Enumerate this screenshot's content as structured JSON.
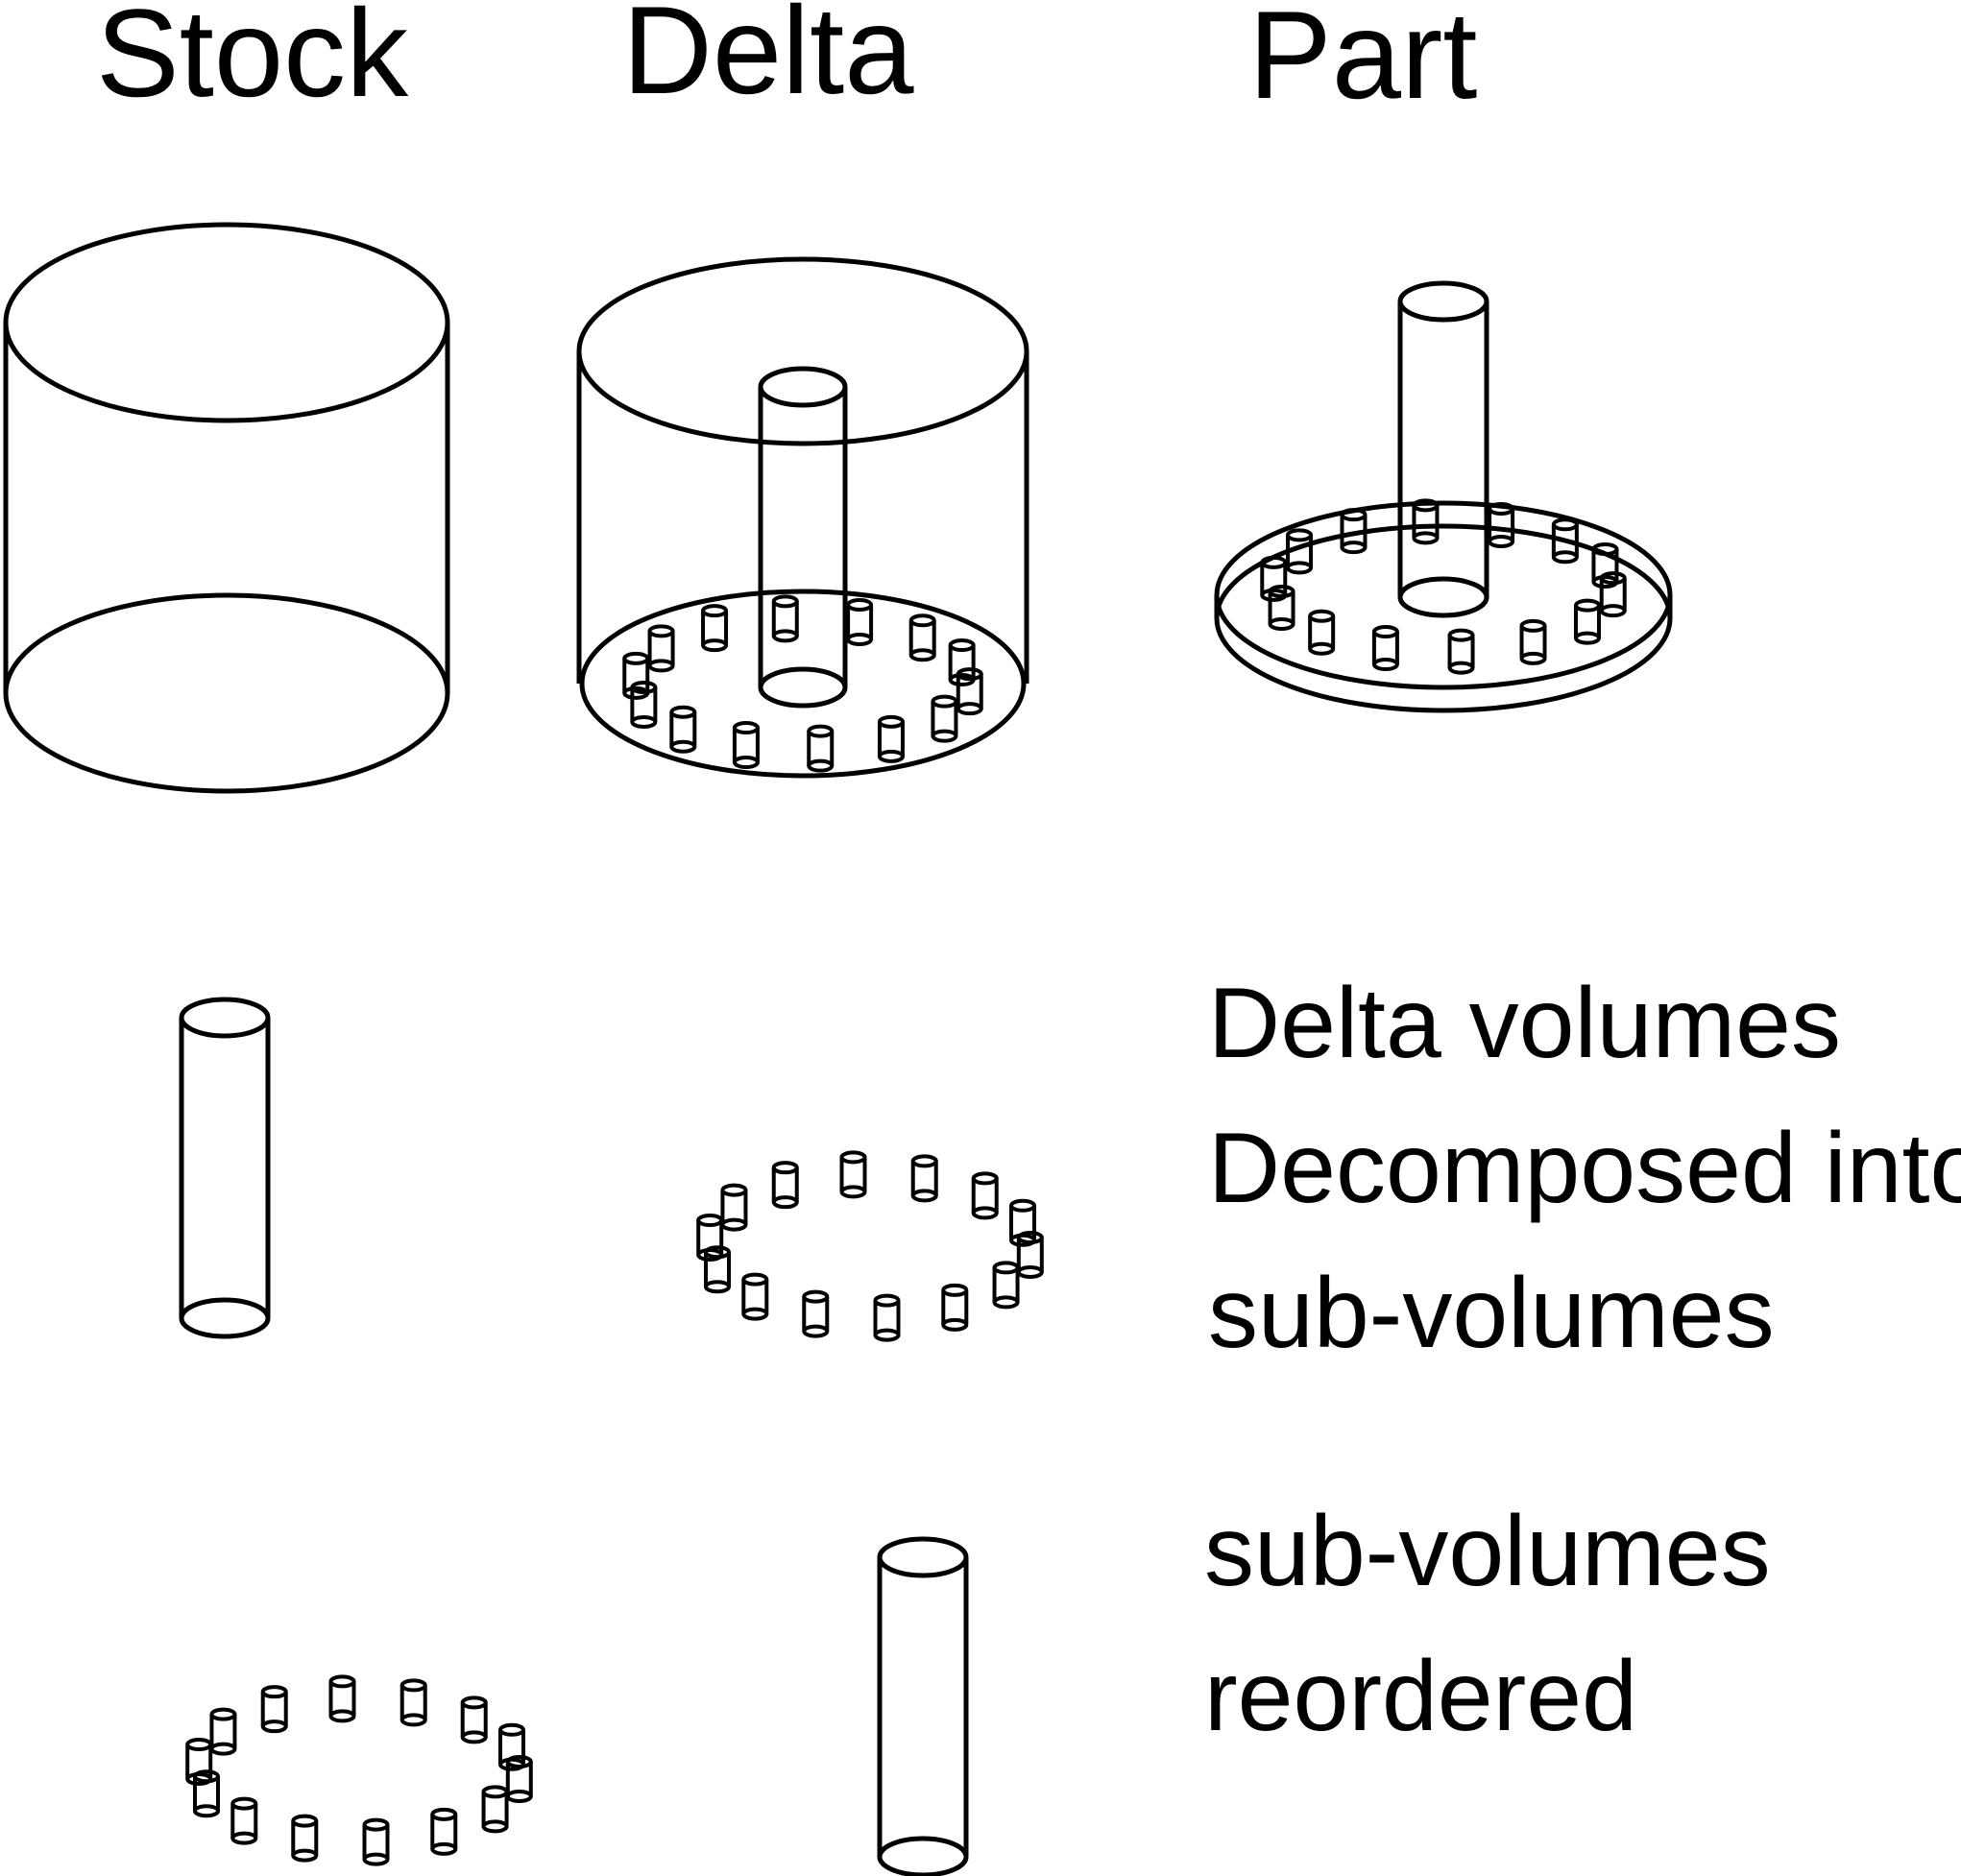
{
  "titles": {
    "stock": "Stock",
    "delta": "Delta",
    "part": "Part"
  },
  "notes": {
    "decomposed": [
      "Delta volumes",
      "Decomposed into",
      "sub-volumes"
    ],
    "reordered": [
      "sub-volumes",
      "reordered"
    ]
  },
  "colors": {
    "stroke": "#000000",
    "background": "#ffffff"
  },
  "small_feature_count": 14
}
